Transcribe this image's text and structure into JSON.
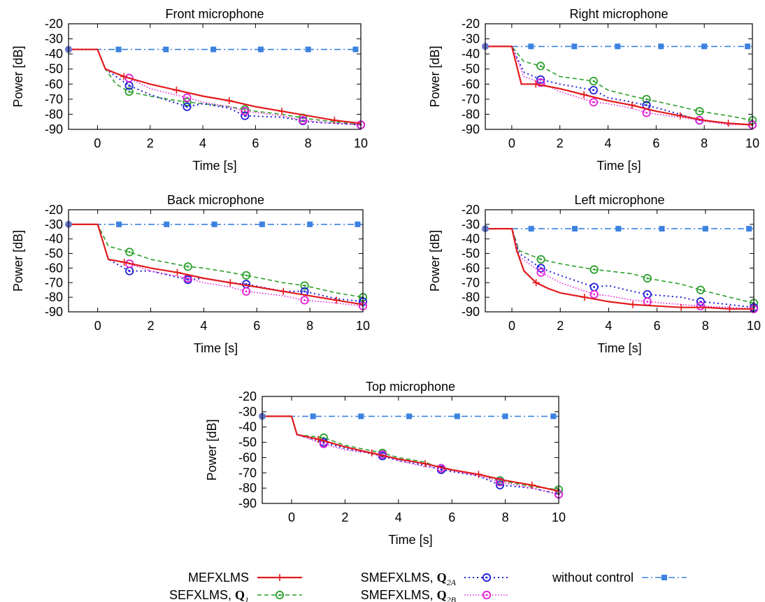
{
  "chart_data": {
    "type": "line",
    "legend": {
      "placement": "bottom",
      "entries": [
        {
          "key": "mef",
          "label": "MEFXLMS",
          "sub": ""
        },
        {
          "key": "sef",
          "label": "SEFXLMS, Q",
          "sub": "1"
        },
        {
          "key": "q2a",
          "label": "SMEFXLMS, Q",
          "sub": "2A"
        },
        {
          "key": "q2b",
          "label": "SMEFXLMS, Q",
          "sub": "2B"
        },
        {
          "key": "noc",
          "label": "without control",
          "sub": ""
        }
      ]
    },
    "series_styles": {
      "mef": {
        "color": "#e31a1c",
        "dash": "",
        "width": 2.2,
        "marker": "plus"
      },
      "sef": {
        "color": "#2ca02c",
        "dash": "6,4",
        "width": 1.6,
        "marker": "circle"
      },
      "q2a": {
        "color": "#1f1fd6",
        "dash": "2,4",
        "width": 2.0,
        "marker": "circle"
      },
      "q2b": {
        "color": "#e020d8",
        "dash": "1.5,2.5",
        "width": 1.6,
        "marker": "circle"
      },
      "noc": {
        "color": "#3c82e0",
        "dash": "9,4,2,4",
        "width": 1.6,
        "marker": "square"
      }
    },
    "charts": [
      {
        "title": "Front microphone",
        "xlabel": "Time [s]",
        "ylabel": "Power [dB]",
        "xlim": [
          -1.1,
          10
        ],
        "ylim": [
          -90,
          -20
        ],
        "xticks": [
          "0",
          "2",
          "4",
          "6",
          "8",
          "10"
        ],
        "yticks": [
          "-20",
          "-30",
          "-40",
          "-50",
          "-60",
          "-70",
          "-80",
          "-90"
        ],
        "series": [
          {
            "key": "noc",
            "x": [
              -1.1,
              10
            ],
            "y": [
              -37,
              -37
            ]
          },
          {
            "key": "mef",
            "x": [
              -1.1,
              0,
              0.3,
              1,
              2,
              3,
              4,
              5,
              6,
              7,
              8,
              9,
              10
            ],
            "y": [
              -37,
              -37,
              -50,
              -55,
              -60,
              -64,
              -68,
              -71,
              -75,
              -78,
              -81,
              -84,
              -86
            ]
          },
          {
            "key": "sef",
            "x": [
              -1.1,
              0,
              0.3,
              0.7,
              1.2,
              2,
              3,
              4,
              5,
              6,
              7,
              8,
              9,
              10
            ],
            "y": [
              -37,
              -37,
              -50,
              -60,
              -65,
              -68,
              -71,
              -73,
              -75,
              -78,
              -80,
              -83,
              -85,
              -87
            ]
          },
          {
            "key": "q2a",
            "x": [
              -1.1,
              0,
              0.3,
              1.2,
              2,
              3.4,
              4,
              5,
              5.6,
              7,
              8,
              9,
              10
            ],
            "y": [
              -37,
              -37,
              -50,
              -61,
              -67,
              -75,
              -73,
              -76,
              -81,
              -82,
              -85,
              -86,
              -87
            ]
          },
          {
            "key": "q2b",
            "x": [
              -1.1,
              0,
              0.3,
              1.2,
              2,
              3.4,
              4,
              5,
              5.6,
              7,
              7.8,
              9,
              10
            ],
            "y": [
              -37,
              -37,
              -50,
              -56,
              -63,
              -69,
              -72,
              -75,
              -78,
              -81,
              -84,
              -86,
              -87
            ]
          }
        ]
      },
      {
        "title": "Right microphone",
        "xlabel": "Time [s]",
        "ylabel": "Power [dB]",
        "xlim": [
          -1.1,
          10
        ],
        "ylim": [
          -90,
          -20
        ],
        "xticks": [
          "0",
          "2",
          "4",
          "6",
          "8",
          "10"
        ],
        "yticks": [
          "-20",
          "-30",
          "-40",
          "-50",
          "-60",
          "-70",
          "-80",
          "-90"
        ],
        "series": [
          {
            "key": "noc",
            "x": [
              -1.1,
              10
            ],
            "y": [
              -35,
              -35
            ]
          },
          {
            "key": "mef",
            "x": [
              -1.1,
              0,
              0.4,
              1,
              2,
              3,
              4,
              5,
              6,
              7,
              8,
              9,
              10
            ],
            "y": [
              -35,
              -35,
              -60,
              -60,
              -63,
              -67,
              -71,
              -74,
              -78,
              -81,
              -84,
              -86,
              -87
            ]
          },
          {
            "key": "sef",
            "x": [
              -1.1,
              0,
              0.5,
              1.2,
              2,
              3.4,
              4,
              5,
              5.6,
              7,
              7.8,
              9,
              10
            ],
            "y": [
              -35,
              -35,
              -45,
              -48,
              -55,
              -58,
              -64,
              -68,
              -70,
              -75,
              -78,
              -81,
              -84
            ]
          },
          {
            "key": "q2a",
            "x": [
              -1.1,
              0,
              0.5,
              1.2,
              2,
              3.4,
              4,
              5,
              5.6,
              7,
              7.8,
              9,
              10
            ],
            "y": [
              -35,
              -35,
              -52,
              -57,
              -60,
              -64,
              -69,
              -72,
              -74,
              -80,
              -84,
              -86,
              -87
            ]
          },
          {
            "key": "q2b",
            "x": [
              -1.1,
              0,
              0.5,
              1.2,
              2,
              3.4,
              4,
              5,
              5.6,
              7,
              7.8,
              9,
              10
            ],
            "y": [
              -35,
              -35,
              -55,
              -59,
              -65,
              -72,
              -73,
              -76,
              -79,
              -82,
              -84,
              -87,
              -87
            ]
          }
        ]
      },
      {
        "title": "Back microphone",
        "xlabel": "Time [s]",
        "ylabel": "Power [dB]",
        "xlim": [
          -1.1,
          10
        ],
        "ylim": [
          -90,
          -20
        ],
        "xticks": [
          "0",
          "2",
          "4",
          "6",
          "8",
          "10"
        ],
        "yticks": [
          "-20",
          "-30",
          "-40",
          "-50",
          "-60",
          "-70",
          "-80",
          "-90"
        ],
        "series": [
          {
            "key": "noc",
            "x": [
              -1.1,
              10
            ],
            "y": [
              -30,
              -30
            ]
          },
          {
            "key": "mef",
            "x": [
              -1.1,
              0,
              0.4,
              1,
              2,
              3,
              4,
              5,
              6,
              7,
              8,
              9,
              10
            ],
            "y": [
              -30,
              -30,
              -54,
              -56,
              -60,
              -63,
              -67,
              -70,
              -73,
              -76,
              -79,
              -82,
              -85
            ]
          },
          {
            "key": "sef",
            "x": [
              -1.1,
              0,
              0.4,
              1.2,
              2,
              3.4,
              4,
              5,
              5.6,
              7,
              7.8,
              9,
              10
            ],
            "y": [
              -30,
              -30,
              -45,
              -49,
              -54,
              -59,
              -60,
              -63,
              -65,
              -70,
              -72,
              -77,
              -80
            ]
          },
          {
            "key": "q2a",
            "x": [
              -1.1,
              0,
              0.4,
              1.2,
              2,
              3.4,
              4,
              5,
              5.6,
              7,
              7.8,
              9,
              10
            ],
            "y": [
              -30,
              -30,
              -54,
              -62,
              -62,
              -68,
              -67,
              -70,
              -71,
              -76,
              -76,
              -81,
              -83
            ]
          },
          {
            "key": "q2b",
            "x": [
              -1.1,
              0,
              0.4,
              1.2,
              2,
              3.4,
              4,
              5,
              5.6,
              7,
              7.8,
              9,
              10
            ],
            "y": [
              -30,
              -30,
              -54,
              -57,
              -62,
              -67,
              -70,
              -73,
              -76,
              -79,
              -82,
              -84,
              -86
            ]
          }
        ]
      },
      {
        "title": "Left microphone",
        "xlabel": "Time [s]",
        "ylabel": "Power [dB]",
        "xlim": [
          -1.1,
          10
        ],
        "ylim": [
          -90,
          -20
        ],
        "xticks": [
          "0",
          "2",
          "4",
          "6",
          "8",
          "10"
        ],
        "yticks": [
          "-20",
          "-30",
          "-40",
          "-50",
          "-60",
          "-70",
          "-80",
          "-90"
        ],
        "series": [
          {
            "key": "noc",
            "x": [
              -1.1,
              10
            ],
            "y": [
              -33,
              -33
            ]
          },
          {
            "key": "mef",
            "x": [
              -1.1,
              0,
              0.2,
              0.5,
              1,
              1.5,
              2,
              3,
              4,
              5,
              6,
              7,
              8,
              9,
              10
            ],
            "y": [
              -33,
              -33,
              -48,
              -62,
              -70,
              -74,
              -77,
              -80,
              -83,
              -85,
              -86,
              -87,
              -87,
              -88,
              -88
            ]
          },
          {
            "key": "sef",
            "x": [
              -1.1,
              0,
              0.3,
              1.2,
              2,
              3.4,
              4,
              5,
              5.6,
              7,
              7.8,
              9,
              10
            ],
            "y": [
              -33,
              -33,
              -48,
              -54,
              -57,
              -61,
              -62,
              -64,
              -67,
              -71,
              -75,
              -80,
              -84
            ]
          },
          {
            "key": "q2a",
            "x": [
              -1.1,
              0,
              0.3,
              1.2,
              2,
              3.4,
              4,
              5,
              5.6,
              7,
              7.8,
              9,
              10
            ],
            "y": [
              -33,
              -33,
              -50,
              -60,
              -65,
              -73,
              -72,
              -76,
              -78,
              -80,
              -83,
              -85,
              -87
            ]
          },
          {
            "key": "q2b",
            "x": [
              -1.1,
              0,
              0.3,
              1.2,
              2,
              3.4,
              4,
              5,
              5.6,
              7,
              7.8,
              9,
              10
            ],
            "y": [
              -33,
              -33,
              -52,
              -63,
              -70,
              -78,
              -79,
              -82,
              -83,
              -85,
              -86,
              -87,
              -88
            ]
          }
        ]
      },
      {
        "title": "Top microphone",
        "xlabel": "Time [s]",
        "ylabel": "Power [dB]",
        "xlim": [
          -1.1,
          10
        ],
        "ylim": [
          -90,
          -20
        ],
        "xticks": [
          "0",
          "2",
          "4",
          "6",
          "8",
          "10"
        ],
        "yticks": [
          "-20",
          "-30",
          "-40",
          "-50",
          "-60",
          "-70",
          "-80",
          "-90"
        ],
        "series": [
          {
            "key": "noc",
            "x": [
              -1.1,
              10
            ],
            "y": [
              -33,
              -33
            ]
          },
          {
            "key": "mef",
            "x": [
              -1.1,
              0,
              0.2,
              1,
              2,
              3,
              4,
              5,
              6,
              7,
              8,
              9,
              10
            ],
            "y": [
              -33,
              -33,
              -45,
              -48,
              -53,
              -57,
              -61,
              -64,
              -68,
              -71,
              -75,
              -78,
              -82
            ]
          },
          {
            "key": "sef",
            "x": [
              -1.1,
              0,
              0.2,
              1.2,
              2,
              3.4,
              4,
              5,
              5.6,
              7,
              7.8,
              9,
              10
            ],
            "y": [
              -33,
              -33,
              -45,
              -47,
              -52,
              -57,
              -60,
              -63,
              -67,
              -71,
              -75,
              -79,
              -81
            ]
          },
          {
            "key": "q2a",
            "x": [
              -1.1,
              0,
              0.2,
              1.2,
              2,
              3.4,
              4,
              5,
              5.6,
              7,
              7.8,
              9,
              10
            ],
            "y": [
              -33,
              -33,
              -45,
              -50,
              -54,
              -59,
              -62,
              -65,
              -68,
              -72,
              -78,
              -80,
              -84
            ]
          },
          {
            "key": "q2b",
            "x": [
              -1.1,
              0,
              0.2,
              1.2,
              2,
              3.4,
              4,
              5,
              5.6,
              7,
              7.8,
              9,
              10
            ],
            "y": [
              -33,
              -33,
              -45,
              -51,
              -55,
              -58,
              -62,
              -66,
              -67,
              -72,
              -76,
              -80,
              -84
            ]
          }
        ]
      }
    ]
  }
}
